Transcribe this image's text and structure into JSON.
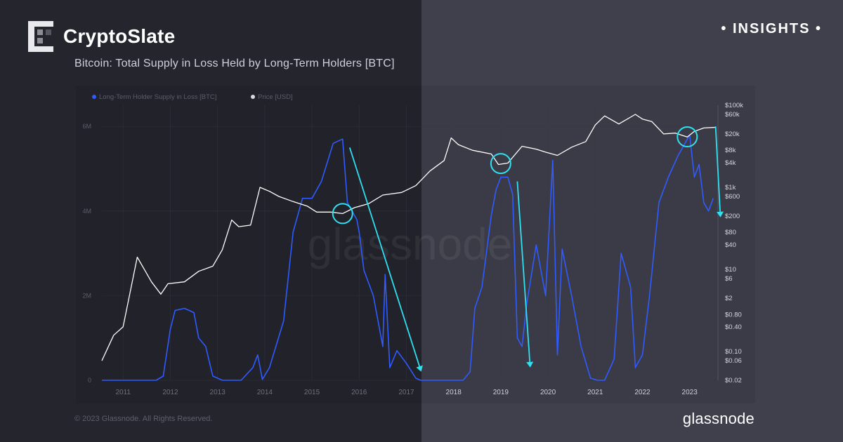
{
  "brand": {
    "name": "CryptoSlate",
    "logo_icon": "cryptoslate-logo-icon"
  },
  "badge": {
    "label": "INSIGHTS"
  },
  "footer": {
    "copyright": "© 2023 Glassnode. All Rights Reserved.",
    "provider": "glassnode"
  },
  "watermark": "glassnode",
  "colors": {
    "supply": "#2f5bff",
    "price": "#ffffff",
    "annotation": "#2ee0f0"
  },
  "chart_data": {
    "type": "line",
    "title": "Bitcoin: Total Supply in Loss Held by Long-Term Holders [BTC]",
    "legend": {
      "placement": "top-left",
      "entries": [
        "Long-Term Holder Supply in Loss [BTC]",
        "Price [USD]"
      ]
    },
    "x_ticks": [
      "2011",
      "2012",
      "2013",
      "2014",
      "2015",
      "2016",
      "2017",
      "2018",
      "2019",
      "2020",
      "2021",
      "2022",
      "2023"
    ],
    "x_range": [
      2010.55,
      2023.6
    ],
    "y_left": {
      "ticks": [
        0,
        2000000,
        4000000,
        6000000
      ],
      "tick_labels": [
        "0",
        "2M",
        "4M",
        "6M"
      ],
      "range": [
        0,
        6500000
      ]
    },
    "y_right": {
      "scale": "log",
      "range": [
        0.02,
        100000
      ],
      "ticks": [
        0.02,
        0.06,
        0.1,
        0.4,
        0.8,
        2,
        6,
        10,
        40,
        80,
        200,
        600,
        1000,
        4000,
        8000,
        20000,
        60000,
        100000
      ],
      "tick_labels": [
        "$0.02",
        "$0.06",
        "$0.10",
        "$0.40",
        "$0.80",
        "$2",
        "$6",
        "$10",
        "$40",
        "$80",
        "$200",
        "$600",
        "$1k",
        "$4k",
        "$8k",
        "$20k",
        "$60k",
        "$100k"
      ]
    },
    "series": [
      {
        "name": "Long-Term Holder Supply in Loss [BTC]",
        "axis": "left",
        "x": [
          2010.55,
          2011.7,
          2011.85,
          2012.0,
          2012.1,
          2012.3,
          2012.5,
          2012.6,
          2012.75,
          2012.9,
          2013.1,
          2013.5,
          2013.75,
          2013.85,
          2013.95,
          2014.1,
          2014.4,
          2014.6,
          2014.8,
          2015.0,
          2015.2,
          2015.45,
          2015.65,
          2015.75,
          2015.85,
          2015.95,
          2016.0,
          2016.1,
          2016.3,
          2016.5,
          2016.55,
          2016.65,
          2016.8,
          2017.0,
          2017.2,
          2017.3,
          2017.6,
          2018.0,
          2018.2,
          2018.35,
          2018.45,
          2018.6,
          2018.8,
          2018.9,
          2019.0,
          2019.15,
          2019.25,
          2019.35,
          2019.45,
          2019.55,
          2019.75,
          2019.95,
          2020.1,
          2020.2,
          2020.3,
          2020.5,
          2020.7,
          2020.9,
          2021.05,
          2021.2,
          2021.4,
          2021.55,
          2021.75,
          2021.85,
          2022.0,
          2022.15,
          2022.35,
          2022.55,
          2022.75,
          2022.9,
          2023.0,
          2023.1,
          2023.2,
          2023.3,
          2023.4,
          2023.5
        ],
        "values": [
          0,
          0,
          100000,
          1200000,
          1650000,
          1700000,
          1600000,
          1000000,
          800000,
          100000,
          0,
          0,
          300000,
          600000,
          20000,
          300000,
          1400000,
          3500000,
          4300000,
          4300000,
          4700000,
          5600000,
          5700000,
          4200000,
          4000000,
          3800000,
          3500000,
          2600000,
          2000000,
          800000,
          2500000,
          300000,
          700000,
          400000,
          50000,
          0,
          0,
          0,
          0,
          200000,
          1700000,
          2200000,
          3900000,
          4500000,
          4800000,
          4800000,
          4400000,
          1000000,
          800000,
          1800000,
          3200000,
          2000000,
          5200000,
          600000,
          3100000,
          2000000,
          800000,
          50000,
          0,
          0,
          500000,
          3000000,
          2200000,
          300000,
          600000,
          2000000,
          4200000,
          4800000,
          5300000,
          5600000,
          5800000,
          4800000,
          5100000,
          4200000,
          4000000,
          4300000
        ]
      },
      {
        "name": "Price [USD]",
        "axis": "right",
        "x": [
          2010.55,
          2010.8,
          2011.0,
          2011.3,
          2011.45,
          2011.6,
          2011.8,
          2011.95,
          2012.3,
          2012.6,
          2012.9,
          2013.1,
          2013.3,
          2013.45,
          2013.7,
          2013.9,
          2014.1,
          2014.3,
          2014.6,
          2014.9,
          2015.1,
          2015.4,
          2015.65,
          2015.9,
          2016.2,
          2016.5,
          2016.9,
          2017.2,
          2017.5,
          2017.8,
          2017.95,
          2018.1,
          2018.4,
          2018.8,
          2018.95,
          2019.15,
          2019.45,
          2019.75,
          2019.95,
          2020.2,
          2020.5,
          2020.8,
          2021.0,
          2021.2,
          2021.5,
          2021.85,
          2022.0,
          2022.2,
          2022.45,
          2022.7,
          2022.95,
          2023.1,
          2023.3,
          2023.55
        ],
        "values": [
          0.06,
          0.25,
          0.4,
          20,
          10,
          5,
          2.5,
          4.5,
          5,
          9,
          12,
          30,
          160,
          110,
          120,
          1000,
          800,
          600,
          450,
          350,
          250,
          250,
          230,
          320,
          400,
          650,
          750,
          1100,
          2500,
          4500,
          16000,
          11000,
          8000,
          6500,
          3600,
          3900,
          10000,
          8500,
          7200,
          6000,
          9500,
          13000,
          33000,
          55000,
          35000,
          60000,
          46000,
          40000,
          20000,
          21000,
          16800,
          23000,
          28000,
          29000
        ]
      }
    ],
    "annotations": [
      {
        "type": "circle",
        "x": 2015.65,
        "y_right": 230
      },
      {
        "type": "circle",
        "x": 2019.0,
        "y_right": 3800
      },
      {
        "type": "circle",
        "x": 2022.95,
        "y_right": 17000
      },
      {
        "type": "arrow",
        "x_from": 2015.8,
        "y_from": 5500000,
        "x_to": 2017.3,
        "y_to": 250000
      },
      {
        "type": "arrow",
        "x_from": 2019.35,
        "y_from": 4700000,
        "x_to": 2019.62,
        "y_to": 350000
      },
      {
        "type": "arrow",
        "x_from": 2023.55,
        "y_from": 6000000,
        "x_to": 2023.65,
        "y_to": 3900000
      }
    ]
  }
}
